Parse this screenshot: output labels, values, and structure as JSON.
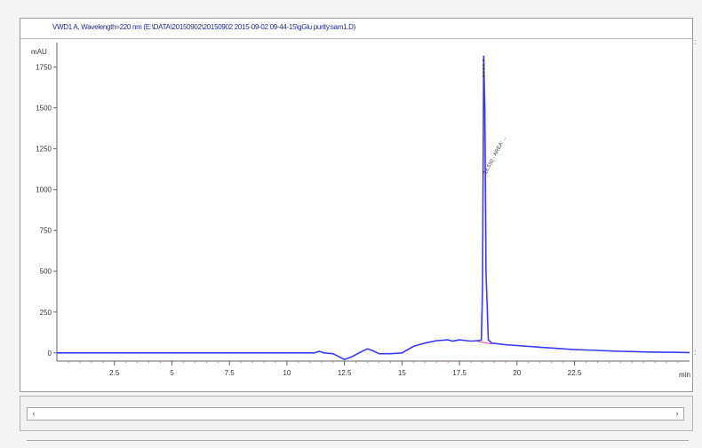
{
  "header": {
    "title": "VWD1 A, Wavelength=220 nm (E:\\DATA\\20150902\\20150902 2015-09-02 09-44-15\\gGlu purity.sam1.D)"
  },
  "chart_data": {
    "type": "line",
    "title": "VWD1 A, Wavelength=220 nm (E:\\DATA\\20150902\\20150902 2015-09-02 09-44-15\\gGlu purity.sam1.D)",
    "xlabel": "min",
    "ylabel": "mAU",
    "xlim": [
      0,
      27.5
    ],
    "ylim": [
      -50,
      1900
    ],
    "x_ticks": [
      2.5,
      5,
      7.5,
      10,
      12.5,
      15,
      17.5,
      20,
      22.5
    ],
    "x_tick_labels": [
      "2.5",
      "5",
      "7.5",
      "10",
      "12.5",
      "15",
      "17.5",
      "20",
      "22.5"
    ],
    "y_ticks": [
      0,
      250,
      500,
      750,
      1000,
      1250,
      1500,
      1750
    ],
    "y_tick_labels": [
      "0",
      "250",
      "500",
      "750",
      "1000",
      "1250",
      "1500",
      "1750"
    ],
    "peak_label": "18.550 - AREA: ...",
    "series": [
      {
        "color": "#3a3aff",
        "x": [
          0,
          11.2,
          11.4,
          11.6,
          12.0,
          12.5,
          12.8,
          13.2,
          13.5,
          13.7,
          14.0,
          14.5,
          15.0,
          15.5,
          16.0,
          16.5,
          17.0,
          17.2,
          17.5,
          17.8,
          18.0,
          18.3,
          18.45,
          18.5,
          18.55,
          18.6,
          18.65,
          18.75,
          18.9,
          19.2,
          19.5,
          20.0,
          20.5,
          21.0,
          21.5,
          22.0,
          22.5,
          23.0,
          23.5,
          24.0,
          24.5,
          25.0,
          25.5,
          26.0,
          27.5
        ],
        "y": [
          0,
          0,
          10,
          0,
          -5,
          -40,
          -25,
          5,
          25,
          15,
          -5,
          -5,
          0,
          40,
          60,
          75,
          80,
          72,
          80,
          75,
          72,
          75,
          80,
          400,
          1820,
          1500,
          500,
          80,
          60,
          55,
          50,
          45,
          40,
          35,
          30,
          25,
          20,
          18,
          15,
          12,
          10,
          8,
          6,
          5,
          2
        ]
      }
    ]
  }
}
